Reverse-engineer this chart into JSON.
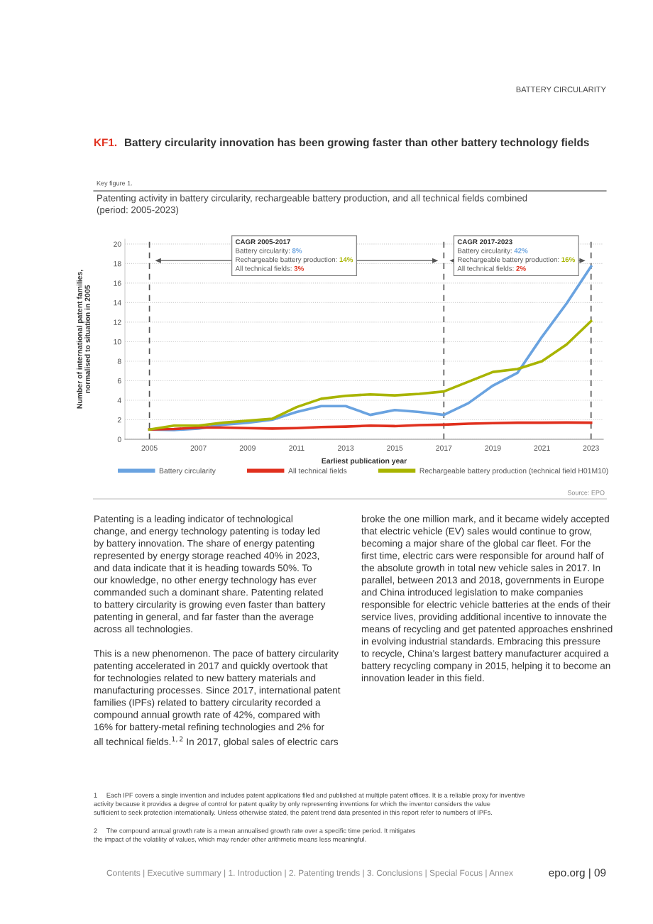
{
  "chart_data": {
    "type": "line",
    "title": "Patenting activity in battery circularity, rechargeable battery production, and all technical fields combined\n(period: 2005-2023)",
    "xlabel": "Earliest publication year",
    "ylabel": "Number of international patent families,\nnormalised to situation in 2005",
    "x": [
      2005,
      2006,
      2007,
      2008,
      2009,
      2010,
      2011,
      2012,
      2013,
      2014,
      2015,
      2016,
      2017,
      2018,
      2019,
      2020,
      2021,
      2022,
      2023
    ],
    "series": [
      {
        "name": "Battery circularity",
        "color": "#6aa3e0",
        "values": [
          1.0,
          0.95,
          1.1,
          1.5,
          1.7,
          2.0,
          2.8,
          3.4,
          3.4,
          2.5,
          3.0,
          2.8,
          2.5,
          3.7,
          5.5,
          6.8,
          10.5,
          13.9,
          17.7
        ]
      },
      {
        "name": "All technical fields",
        "color": "#e0301e",
        "values": [
          1.0,
          1.05,
          1.2,
          1.2,
          1.15,
          1.1,
          1.15,
          1.25,
          1.3,
          1.4,
          1.35,
          1.45,
          1.5,
          1.6,
          1.65,
          1.7,
          1.7,
          1.72,
          1.7
        ]
      },
      {
        "name": "Rechargeable battery production (technical field H01M10)",
        "color": "#a8b400",
        "values": [
          1.0,
          1.4,
          1.4,
          1.7,
          1.9,
          2.1,
          3.3,
          4.15,
          4.45,
          4.6,
          4.5,
          4.65,
          4.9,
          5.9,
          6.9,
          7.2,
          8.0,
          9.7,
          12.1
        ]
      }
    ],
    "xlim": [
      2004,
      2023.5
    ],
    "xticks": [
      2005,
      2007,
      2009,
      2011,
      2013,
      2015,
      2017,
      2019,
      2021,
      2023
    ],
    "ylim": [
      0,
      20.5
    ],
    "yticks": [
      0,
      2,
      4,
      6,
      8,
      10,
      12,
      14,
      16,
      18,
      20
    ],
    "grid": "y",
    "legend": "bottom",
    "marker": "none",
    "line_style": "solid",
    "ref_lines": [
      {
        "axis": "x",
        "value": 2005,
        "label": null,
        "color": "#555555",
        "line_style": "dashed"
      },
      {
        "axis": "x",
        "value": 2017,
        "label": null,
        "color": "#555555",
        "line_style": "dashed"
      },
      {
        "axis": "x",
        "value": 2023,
        "label": null,
        "color": "#555555",
        "line_style": "dashed"
      }
    ],
    "annotations": [
      "CAGR 2005-2017",
      "Battery circularity: 8%",
      "Rechargeable battery production: 14%",
      "All technical fields: 3%",
      "CAGR 2017-2023",
      "Battery circularity: 42%",
      "Rechargeable battery production: 16%",
      "All technical fields: 2%",
      "Source: EPO",
      "BATTERY CIRCULARITY",
      "KF1.",
      "Battery circularity innovation has been growing faster than other battery technology fields",
      "Key figure 1.",
      "Patenting is a leading indicator of technological\nchange, and energy technology patenting is today led\nby battery innovation. The share of energy patenting\nrepresented by energy storage reached 40% in 2023,\nand data indicate that it is heading towards 50%. To\nour knowledge, no other energy technology has ever\ncommanded such a dominant share. Patenting related\nto battery circularity is growing even faster than battery\npatenting in general, and far faster than the average\nacross all technologies.\n\nThis is a new phenomenon. The pace of battery circularity\npatenting accelerated in 2017 and quickly overtook that\nfor technologies related to new battery materials and\nmanufacturing processes. Since 2017, international patent\nfamilies (IPFs) related to battery circularity recorded a\ncompound annual growth rate of 42%, compared with\n16% for battery-metal refining technologies and 2% for\nall technical fields.$^{1,2}$ In 2017, global sales of electric cars",
      "broke the one million mark, and it became widely accepted\nthat electric vehicle (EV) sales would continue to grow,\nbecoming a major share of the global car fleet. For the\nfirst time, electric cars were responsible for around half of\nthe absolute growth in total new vehicle sales in 2017. In\nparallel, between 2013 and 2018, governments in Europe\nand China introduced legislation to make companies\nresponsible for electric vehicle batteries at the ends of their\nservice lives, providing additional incentive to innovate the\nmeans of recycling and get patented approaches enshrined\nin evolving industrial standards. Embracing this pressure\nto recycle, China’s largest battery manufacturer acquired a\nbattery recycling company in 2015, helping it to become an\ninnovation leader in this field.",
      "1     Each IPF covers a single invention and includes patent applications filed and published at multiple patent offices. It is a reliable proxy for inventive\nactivity because it provides a degree of control for patent quality by only representing inventions for which the inventor considers the value\nsufficient to seek protection internationally. Unless otherwise stated, the patent trend data presented in this report refer to numbers of IPFs.",
      "2     The compound annual growth rate is a mean annualised growth rate over a specific time period. It mitigates\nthe impact of the volatility of values, which may render other arithmetic means less meaningful.",
      "Contents | Executive summary | 1. Introduction | 2. Patenting trends | 3. Conclusions | Special Focus | Annex",
      "epo.org | 09"
    ]
  }
}
